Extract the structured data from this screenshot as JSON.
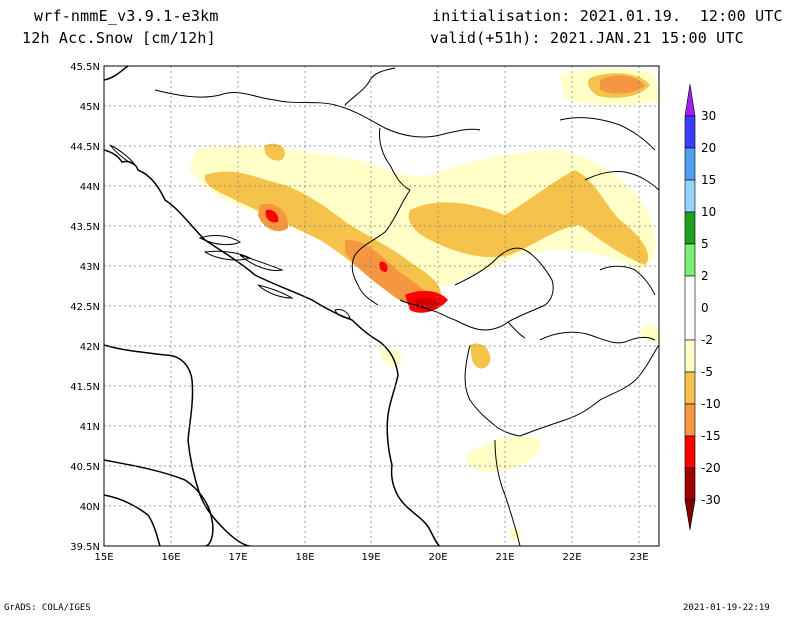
{
  "header": {
    "model": "wrf-nmmE_v3.9.1-e3km",
    "field": "12h Acc.Snow [cm/12h]",
    "init": "initialisation: 2021.01.19.  12:00 UTC",
    "valid": "valid(+51h): 2021.JAN.21 15:00 UTC"
  },
  "footer": {
    "left": "GrADS: COLA/IGES",
    "right": "2021-01-19-22:19"
  },
  "map": {
    "lon_ticks": [
      "15E",
      "16E",
      "17E",
      "18E",
      "19E",
      "20E",
      "21E",
      "22E",
      "23E"
    ],
    "lat_ticks": [
      "45.5N",
      "45N",
      "44.5N",
      "44N",
      "43.5N",
      "43N",
      "42.5N",
      "42N",
      "41.5N",
      "41N",
      "40.5N",
      "40N",
      "39.5N"
    ],
    "lon_range": [
      15,
      23.3
    ],
    "lat_range": [
      39.5,
      45.5
    ],
    "grid": true
  },
  "colorbar": {
    "labels": [
      "30",
      "20",
      "15",
      "10",
      "5",
      "2",
      "0",
      "-2",
      "-5",
      "-10",
      "-15",
      "-20",
      "-30"
    ],
    "colors": [
      "#a020f0",
      "#3c3cff",
      "#50a0f0",
      "#96d2fa",
      "#1ea01e",
      "#78f078",
      "#ffffff",
      "#ffffc8",
      "#f5c34b",
      "#f59641",
      "#ff0000",
      "#d20000",
      "#a00000",
      "#800000"
    ]
  }
}
